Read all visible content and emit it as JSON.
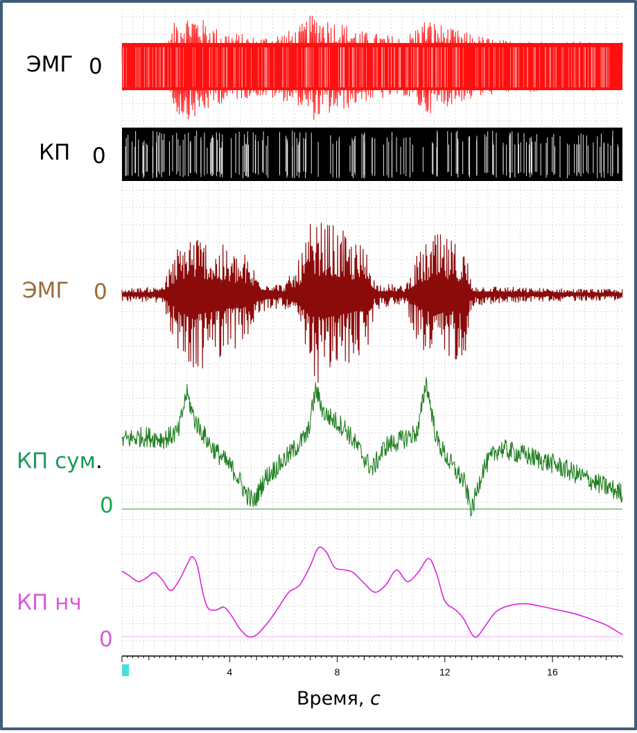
{
  "chart_data": {
    "type": "line",
    "x_range_s": [
      0,
      18.6
    ],
    "x_ticks": [
      4,
      8,
      12,
      16
    ],
    "xlabel_main": "Время,",
    "xlabel_unit": "с",
    "grid": true,
    "traces": [
      {
        "key": "emg1",
        "label": "ЭМГ",
        "zero_label": "0",
        "color": "#ff1010",
        "label_color": "#000000",
        "zero_color": "#000000",
        "style": "dense-noise",
        "amplitude_envelope": [
          [
            0,
            0.45
          ],
          [
            1.7,
            0.45
          ],
          [
            2.0,
            0.9
          ],
          [
            2.6,
            1.0
          ],
          [
            3.6,
            0.7
          ],
          [
            5.0,
            0.55
          ],
          [
            6.5,
            0.7
          ],
          [
            7.1,
            1.0
          ],
          [
            8.3,
            0.8
          ],
          [
            9.0,
            0.65
          ],
          [
            10.5,
            0.55
          ],
          [
            11.3,
            0.9
          ],
          [
            12.3,
            0.7
          ],
          [
            14.0,
            0.5
          ],
          [
            18.6,
            0.45
          ]
        ]
      },
      {
        "key": "kp",
        "label": "КП",
        "zero_label": "0",
        "color": "#000000",
        "label_color": "#000000",
        "zero_color": "#000000",
        "style": "spike-train",
        "amplitude_envelope": [
          [
            0,
            1.0
          ],
          [
            18.6,
            1.0
          ]
        ]
      },
      {
        "key": "emg2",
        "label": "ЭМГ",
        "zero_label": "0",
        "color": "#8b0b0b",
        "label_color": "#9a6a35",
        "zero_color": "#9a6a35",
        "style": "bursts",
        "amplitude_envelope": [
          [
            0,
            0.07
          ],
          [
            1.2,
            0.09
          ],
          [
            1.6,
            0.18
          ],
          [
            2.0,
            0.55
          ],
          [
            2.5,
            0.85
          ],
          [
            3.2,
            0.7
          ],
          [
            4.0,
            0.55
          ],
          [
            4.6,
            0.5
          ],
          [
            5.2,
            0.2
          ],
          [
            6.0,
            0.12
          ],
          [
            6.5,
            0.35
          ],
          [
            7.0,
            0.85
          ],
          [
            7.6,
            0.9
          ],
          [
            8.5,
            0.7
          ],
          [
            9.2,
            0.55
          ],
          [
            9.4,
            0.15
          ],
          [
            10.5,
            0.1
          ],
          [
            11.0,
            0.5
          ],
          [
            11.6,
            0.75
          ],
          [
            12.4,
            0.65
          ],
          [
            12.8,
            0.55
          ],
          [
            13.0,
            0.12
          ],
          [
            15.0,
            0.08
          ],
          [
            18.6,
            0.06
          ]
        ]
      },
      {
        "key": "kp_sum",
        "label": "КП сум",
        "label_suffix": ".",
        "zero_label": "0",
        "color": "#1f7d1f",
        "label_color": "#1a9a5a",
        "zero_color": "#19a64f",
        "zero_line_color": "#3c8f3c",
        "style": "noisy-baseline",
        "baseline": [
          [
            0,
            0.55
          ],
          [
            0.8,
            0.58
          ],
          [
            1.6,
            0.56
          ],
          [
            2.1,
            0.62
          ],
          [
            2.4,
            0.95
          ],
          [
            2.7,
            0.72
          ],
          [
            3.3,
            0.5
          ],
          [
            4.2,
            0.28
          ],
          [
            4.6,
            0.1
          ],
          [
            4.9,
            0.02
          ],
          [
            5.3,
            0.22
          ],
          [
            6.2,
            0.42
          ],
          [
            6.9,
            0.6
          ],
          [
            7.2,
            0.98
          ],
          [
            7.5,
            0.78
          ],
          [
            8.3,
            0.65
          ],
          [
            9.0,
            0.4
          ],
          [
            9.3,
            0.3
          ],
          [
            9.8,
            0.5
          ],
          [
            10.4,
            0.55
          ],
          [
            11.0,
            0.62
          ],
          [
            11.3,
            1.05
          ],
          [
            11.7,
            0.55
          ],
          [
            12.2,
            0.35
          ],
          [
            12.7,
            0.2
          ],
          [
            13.0,
            -0.05
          ],
          [
            13.4,
            0.3
          ],
          [
            14.0,
            0.48
          ],
          [
            15.0,
            0.42
          ],
          [
            16.0,
            0.35
          ],
          [
            17.0,
            0.25
          ],
          [
            18.0,
            0.15
          ],
          [
            18.6,
            0.1
          ]
        ]
      },
      {
        "key": "kp_lf",
        "label": "КП нч",
        "zero_label": "0",
        "color": "#dd22dd",
        "label_color": "#d85ad8",
        "zero_color": "#d85ad8",
        "zero_line_color": "#e060e0",
        "style": "smooth",
        "points": [
          [
            0,
            0.74
          ],
          [
            0.3,
            0.68
          ],
          [
            0.6,
            0.62
          ],
          [
            0.9,
            0.66
          ],
          [
            1.2,
            0.72
          ],
          [
            1.5,
            0.64
          ],
          [
            1.8,
            0.52
          ],
          [
            2.1,
            0.62
          ],
          [
            2.4,
            0.8
          ],
          [
            2.6,
            0.9
          ],
          [
            2.8,
            0.8
          ],
          [
            3.0,
            0.5
          ],
          [
            3.2,
            0.32
          ],
          [
            3.5,
            0.3
          ],
          [
            3.8,
            0.33
          ],
          [
            4.1,
            0.22
          ],
          [
            4.4,
            0.08
          ],
          [
            4.7,
            0.0
          ],
          [
            5.0,
            0.02
          ],
          [
            5.4,
            0.15
          ],
          [
            5.8,
            0.32
          ],
          [
            6.2,
            0.5
          ],
          [
            6.6,
            0.58
          ],
          [
            7.0,
            0.8
          ],
          [
            7.3,
            1.0
          ],
          [
            7.6,
            0.95
          ],
          [
            7.9,
            0.78
          ],
          [
            8.3,
            0.75
          ],
          [
            8.6,
            0.72
          ],
          [
            9.0,
            0.6
          ],
          [
            9.4,
            0.5
          ],
          [
            9.8,
            0.58
          ],
          [
            10.2,
            0.75
          ],
          [
            10.6,
            0.62
          ],
          [
            11.0,
            0.72
          ],
          [
            11.4,
            0.88
          ],
          [
            11.7,
            0.7
          ],
          [
            12.0,
            0.4
          ],
          [
            12.4,
            0.3
          ],
          [
            12.7,
            0.2
          ],
          [
            13.0,
            0.03
          ],
          [
            13.2,
            0.0
          ],
          [
            13.5,
            0.12
          ],
          [
            13.9,
            0.28
          ],
          [
            14.4,
            0.35
          ],
          [
            15.0,
            0.37
          ],
          [
            15.6,
            0.34
          ],
          [
            16.2,
            0.3
          ],
          [
            16.8,
            0.26
          ],
          [
            17.4,
            0.2
          ],
          [
            18.0,
            0.13
          ],
          [
            18.6,
            0.02
          ]
        ]
      }
    ]
  }
}
